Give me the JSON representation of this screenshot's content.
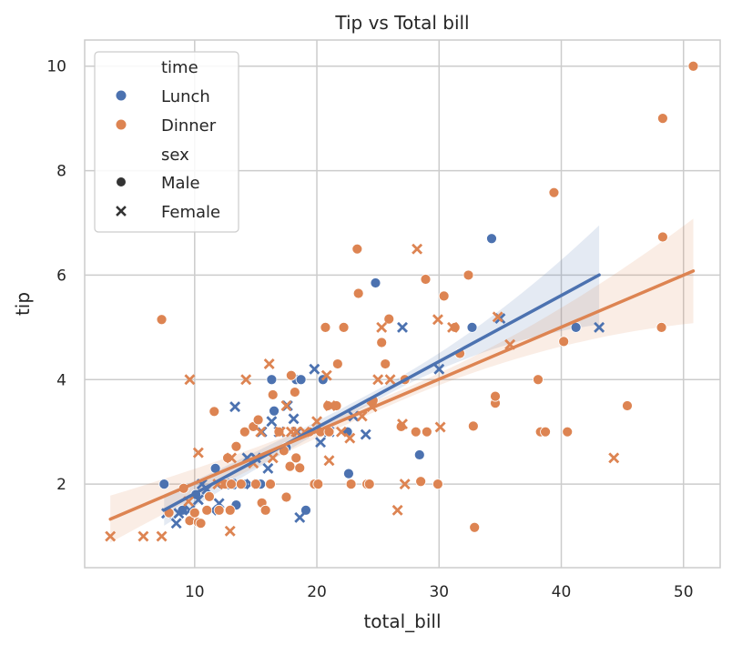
{
  "chart_data": {
    "type": "scatter",
    "title": "Tip vs Total bill",
    "xlabel": "total_bill",
    "ylabel": "tip",
    "xlim": [
      1.0,
      53.0
    ],
    "ylim": [
      0.4,
      10.5
    ],
    "xticks": [
      10,
      20,
      30,
      40,
      50
    ],
    "yticks": [
      2,
      4,
      6,
      8,
      10
    ],
    "grid": true,
    "legend_position": "top-left",
    "legend": {
      "hue_title": "time",
      "hue_entries": [
        {
          "label": "Lunch",
          "color": "#4c72b0"
        },
        {
          "label": "Dinner",
          "color": "#dd8452"
        }
      ],
      "style_title": "sex",
      "style_entries": [
        {
          "label": "Male",
          "marker": "circle"
        },
        {
          "label": "Female",
          "marker": "x"
        }
      ]
    },
    "series": [
      {
        "time": "Lunch",
        "sex": "Male",
        "color": "#4c72b0",
        "marker": "circle",
        "points": [
          [
            7.5,
            2.0
          ],
          [
            9.0,
            1.5
          ],
          [
            10.1,
            1.8
          ],
          [
            11.7,
            2.3
          ],
          [
            12.2,
            2.0
          ],
          [
            13.4,
            1.6
          ],
          [
            14.0,
            2.0
          ],
          [
            15.4,
            2.0
          ],
          [
            16.3,
            4.0
          ],
          [
            16.5,
            3.4
          ],
          [
            17.5,
            2.7
          ],
          [
            18.3,
            4.0
          ],
          [
            18.7,
            4.0
          ],
          [
            19.1,
            1.5
          ],
          [
            20.5,
            4.0
          ],
          [
            22.5,
            3.0
          ],
          [
            22.6,
            2.2
          ],
          [
            24.8,
            5.85
          ],
          [
            28.4,
            2.56
          ],
          [
            32.7,
            5.0
          ],
          [
            34.3,
            6.7
          ],
          [
            41.2,
            5.0
          ]
        ]
      },
      {
        "time": "Lunch",
        "sex": "Female",
        "color": "#4c72b0",
        "marker": "x",
        "points": [
          [
            7.7,
            1.44
          ],
          [
            8.5,
            1.25
          ],
          [
            8.7,
            1.44
          ],
          [
            9.6,
            1.5
          ],
          [
            10.3,
            1.7
          ],
          [
            10.6,
            2.0
          ],
          [
            11.0,
            1.9
          ],
          [
            11.4,
            1.5
          ],
          [
            12.0,
            1.63
          ],
          [
            12.5,
            2.0
          ],
          [
            13.0,
            2.0
          ],
          [
            13.3,
            3.48
          ],
          [
            13.5,
            2.0
          ],
          [
            14.3,
            2.5
          ],
          [
            14.6,
            2.0
          ],
          [
            15.0,
            2.5
          ],
          [
            15.5,
            3.0
          ],
          [
            16.0,
            2.3
          ],
          [
            16.3,
            3.2
          ],
          [
            16.9,
            3.0
          ],
          [
            17.6,
            3.5
          ],
          [
            18.1,
            3.25
          ],
          [
            18.4,
            3.0
          ],
          [
            19.8,
            4.2
          ],
          [
            20.3,
            2.8
          ],
          [
            21.0,
            3.0
          ],
          [
            23.0,
            3.3
          ],
          [
            24.0,
            2.95
          ],
          [
            27.0,
            5.0
          ],
          [
            30.0,
            4.2
          ],
          [
            35.0,
            5.17
          ],
          [
            43.1,
            5.0
          ],
          [
            18.6,
            1.36
          ]
        ]
      },
      {
        "time": "Dinner",
        "sex": "Male",
        "color": "#dd8452",
        "marker": "circle",
        "points": [
          [
            7.3,
            5.15
          ],
          [
            7.9,
            1.45
          ],
          [
            9.1,
            1.92
          ],
          [
            9.6,
            1.3
          ],
          [
            10.0,
            1.45
          ],
          [
            10.3,
            1.27
          ],
          [
            10.5,
            1.25
          ],
          [
            11.0,
            1.5
          ],
          [
            11.2,
            1.76
          ],
          [
            11.6,
            3.39
          ],
          [
            12.0,
            1.5
          ],
          [
            12.5,
            2.0
          ],
          [
            12.9,
            1.5
          ],
          [
            13.0,
            2.0
          ],
          [
            13.4,
            2.72
          ],
          [
            13.8,
            2.0
          ],
          [
            14.1,
            3.0
          ],
          [
            14.8,
            3.1
          ],
          [
            15.0,
            2.0
          ],
          [
            15.2,
            3.23
          ],
          [
            15.5,
            1.64
          ],
          [
            15.8,
            1.5
          ],
          [
            16.2,
            2.0
          ],
          [
            16.4,
            3.71
          ],
          [
            16.9,
            3.0
          ],
          [
            17.3,
            2.64
          ],
          [
            17.5,
            1.75
          ],
          [
            17.8,
            2.34
          ],
          [
            17.9,
            4.08
          ],
          [
            18.2,
            3.76
          ],
          [
            18.3,
            2.5
          ],
          [
            18.6,
            2.31
          ],
          [
            19.4,
            3.0
          ],
          [
            19.8,
            2.0
          ],
          [
            20.1,
            2.0
          ],
          [
            20.3,
            3.0
          ],
          [
            20.7,
            5.0
          ],
          [
            20.9,
            3.5
          ],
          [
            21.0,
            3.0
          ],
          [
            21.6,
            3.5
          ],
          [
            21.7,
            4.3
          ],
          [
            22.2,
            5.0
          ],
          [
            22.8,
            2.0
          ],
          [
            23.3,
            6.5
          ],
          [
            23.4,
            5.65
          ],
          [
            24.1,
            2.0
          ],
          [
            24.3,
            2.0
          ],
          [
            24.6,
            3.6
          ],
          [
            25.3,
            4.71
          ],
          [
            25.6,
            4.3
          ],
          [
            25.9,
            5.16
          ],
          [
            26.9,
            3.1
          ],
          [
            27.2,
            4.0
          ],
          [
            28.1,
            3.0
          ],
          [
            28.5,
            2.05
          ],
          [
            28.9,
            5.92
          ],
          [
            29.0,
            3.0
          ],
          [
            29.9,
            2.0
          ],
          [
            30.4,
            5.6
          ],
          [
            31.3,
            5.0
          ],
          [
            31.7,
            4.5
          ],
          [
            32.4,
            6.0
          ],
          [
            32.8,
            3.11
          ],
          [
            32.9,
            1.17
          ],
          [
            34.6,
            3.55
          ],
          [
            34.6,
            3.68
          ],
          [
            38.1,
            4.0
          ],
          [
            38.3,
            3.0
          ],
          [
            38.7,
            3.0
          ],
          [
            39.4,
            7.58
          ],
          [
            40.2,
            4.73
          ],
          [
            40.5,
            3.0
          ],
          [
            45.4,
            3.5
          ],
          [
            48.2,
            5.0
          ],
          [
            48.3,
            6.73
          ],
          [
            48.3,
            9.0
          ],
          [
            50.8,
            10.0
          ],
          [
            12.7,
            2.5
          ]
        ]
      },
      {
        "time": "Dinner",
        "sex": "Female",
        "color": "#dd8452",
        "marker": "x",
        "points": [
          [
            3.1,
            1.0
          ],
          [
            5.8,
            1.0
          ],
          [
            7.3,
            1.0
          ],
          [
            9.6,
            4.0
          ],
          [
            10.3,
            2.6
          ],
          [
            11.9,
            2.0
          ],
          [
            13.0,
            2.5
          ],
          [
            14.2,
            4.0
          ],
          [
            14.8,
            2.4
          ],
          [
            15.4,
            3.0
          ],
          [
            16.1,
            4.3
          ],
          [
            16.4,
            2.5
          ],
          [
            17.0,
            3.0
          ],
          [
            17.5,
            3.5
          ],
          [
            17.9,
            3.0
          ],
          [
            18.3,
            3.0
          ],
          [
            19.0,
            3.0
          ],
          [
            20.0,
            3.2
          ],
          [
            20.8,
            4.08
          ],
          [
            21.0,
            2.45
          ],
          [
            21.1,
            3.5
          ],
          [
            22.0,
            3.0
          ],
          [
            22.7,
            2.88
          ],
          [
            23.7,
            3.3
          ],
          [
            24.5,
            3.48
          ],
          [
            25.0,
            4.0
          ],
          [
            25.3,
            5.0
          ],
          [
            26.0,
            4.0
          ],
          [
            26.6,
            1.5
          ],
          [
            27.0,
            3.15
          ],
          [
            27.2,
            2.0
          ],
          [
            28.2,
            6.5
          ],
          [
            29.9,
            5.15
          ],
          [
            30.1,
            3.09
          ],
          [
            31.1,
            5.0
          ],
          [
            34.8,
            5.2
          ],
          [
            35.8,
            4.67
          ],
          [
            44.3,
            2.5
          ],
          [
            12.9,
            1.1
          ],
          [
            9.5,
            1.67
          ]
        ]
      }
    ],
    "regression": [
      {
        "time": "Lunch",
        "color": "#4c72b0",
        "x_range": [
          7.5,
          43.1
        ],
        "slope": 0.1264,
        "intercept": 0.555,
        "ci_half_width": [
          0.3,
          0.1,
          0.95
        ]
      },
      {
        "time": "Dinner",
        "color": "#dd8452",
        "x_range": [
          3.1,
          50.8
        ],
        "slope": 0.0996,
        "intercept": 1.02,
        "ci_half_width": [
          0.45,
          0.1,
          1.0
        ]
      }
    ]
  }
}
